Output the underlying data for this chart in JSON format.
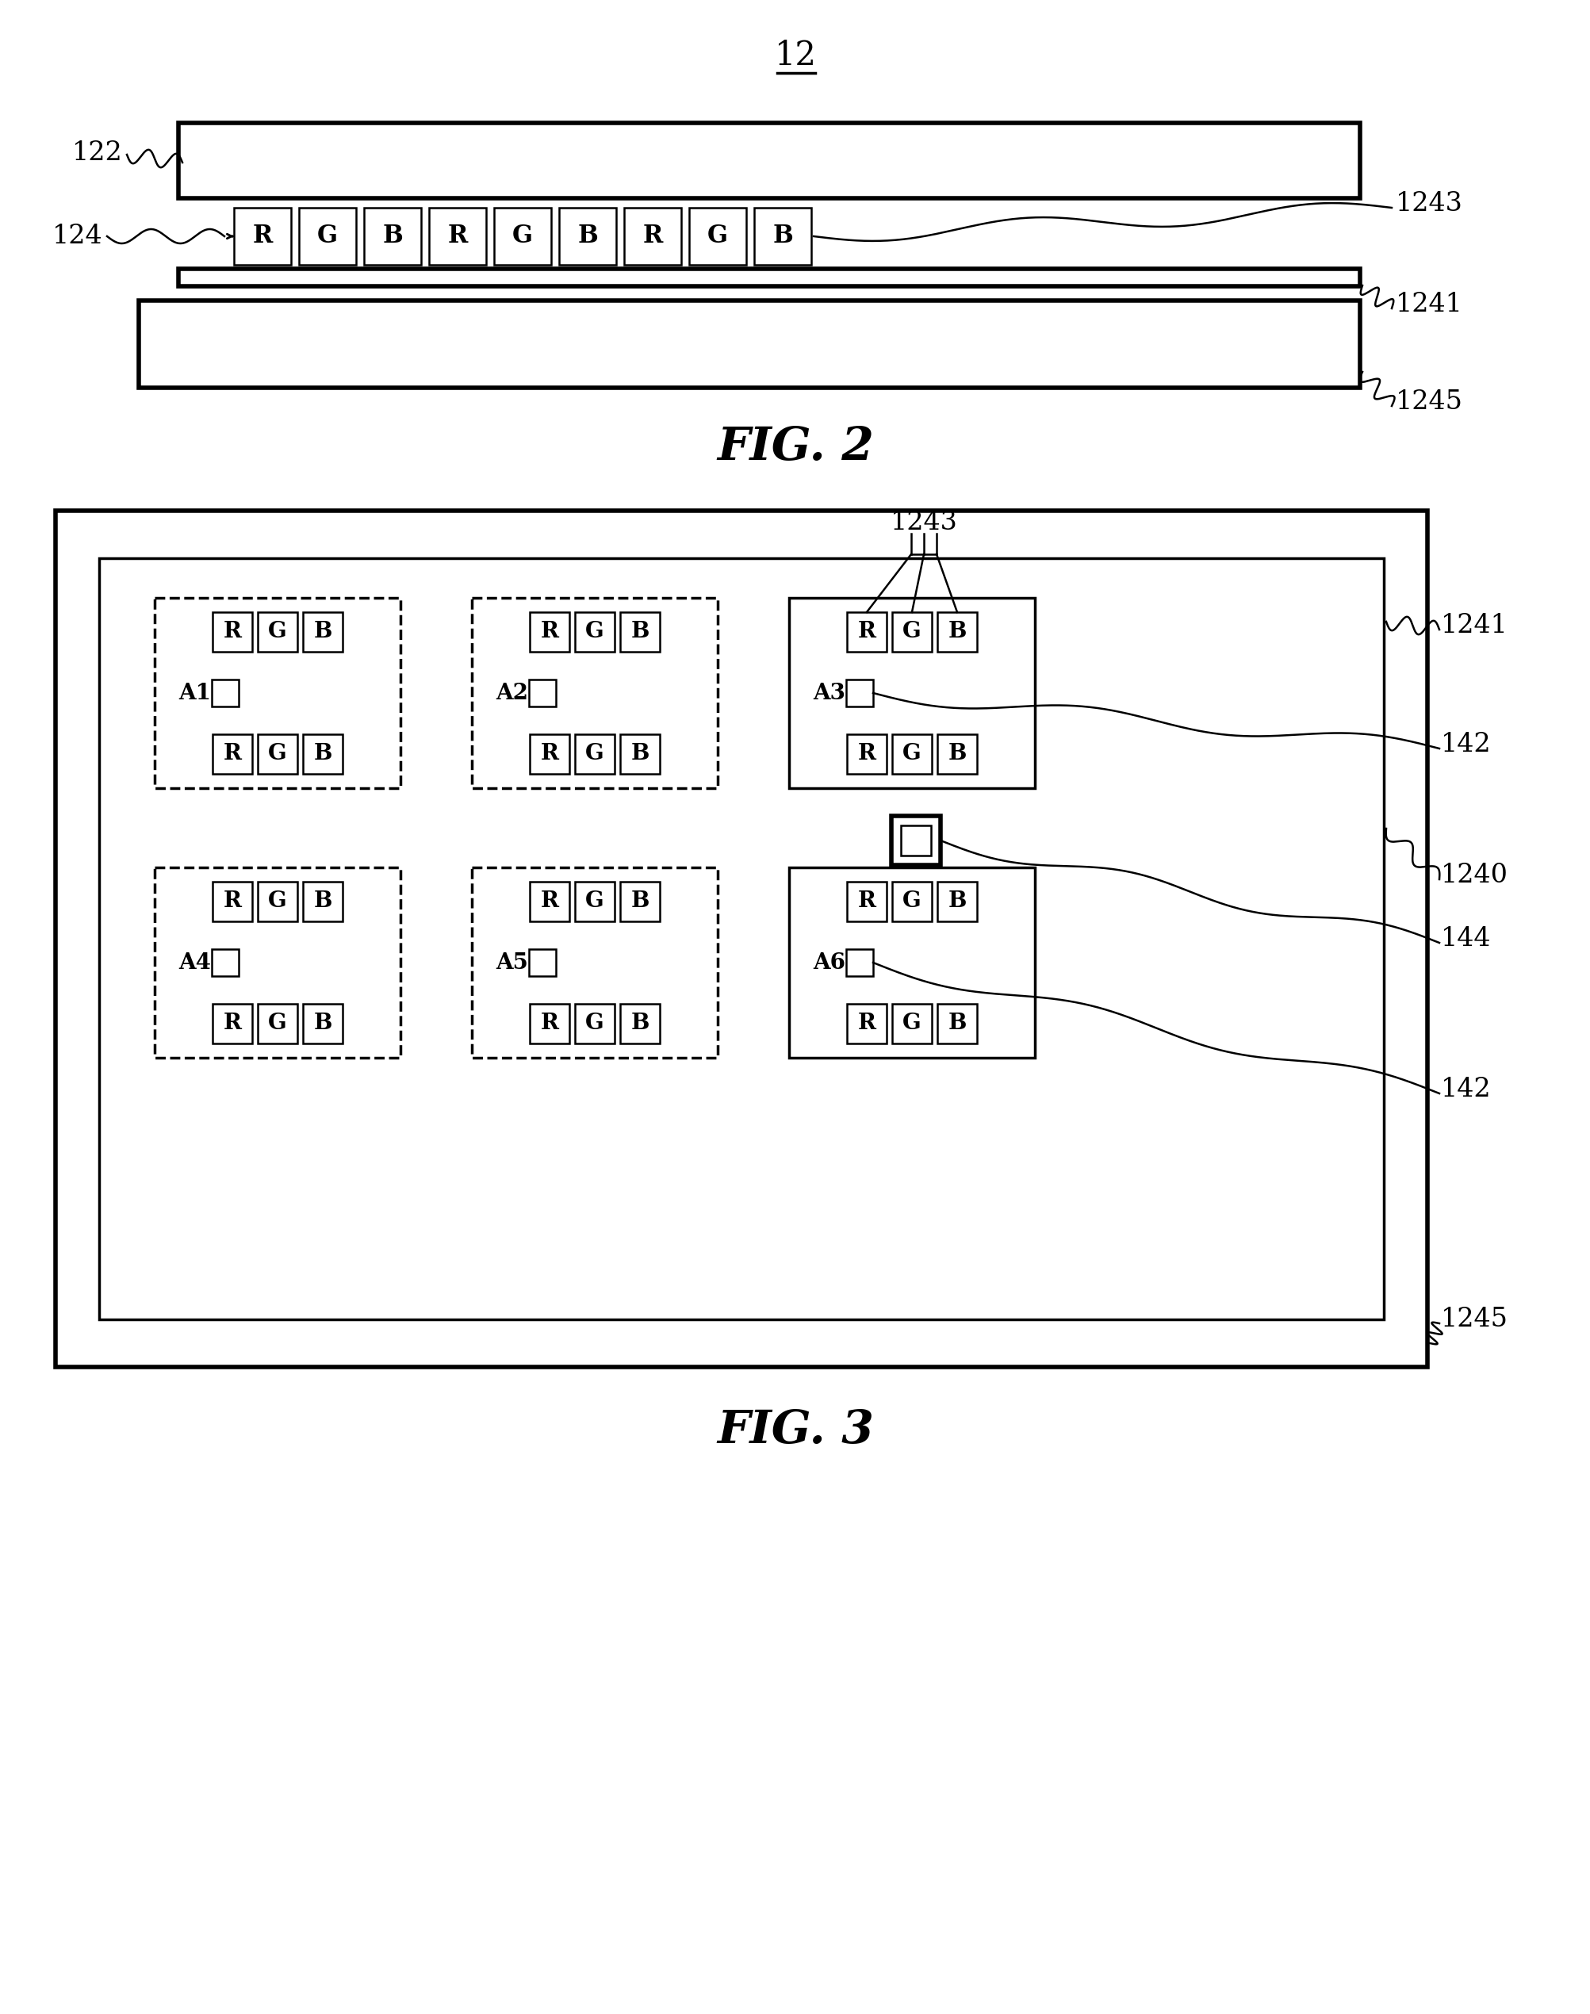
{
  "fig2_label": "FIG. 2",
  "fig3_label": "FIG. 3",
  "label_12": "12",
  "label_122": "122",
  "label_124": "124",
  "label_1243_fig2": "1243",
  "label_1241_fig2": "1241",
  "label_1245_fig2": "1245",
  "label_1241_fig3": "1241",
  "label_1243_fig3": "1243",
  "label_1240": "1240",
  "label_142_top": "142",
  "label_144": "144",
  "label_142_bot": "142",
  "label_1245_fig3": "1245",
  "bg_color": "#ffffff",
  "line_color": "#000000",
  "font_size_label": 24,
  "font_size_rgb": 20,
  "font_size_area": 20,
  "font_size_fig": 42,
  "font_size_num": 30
}
